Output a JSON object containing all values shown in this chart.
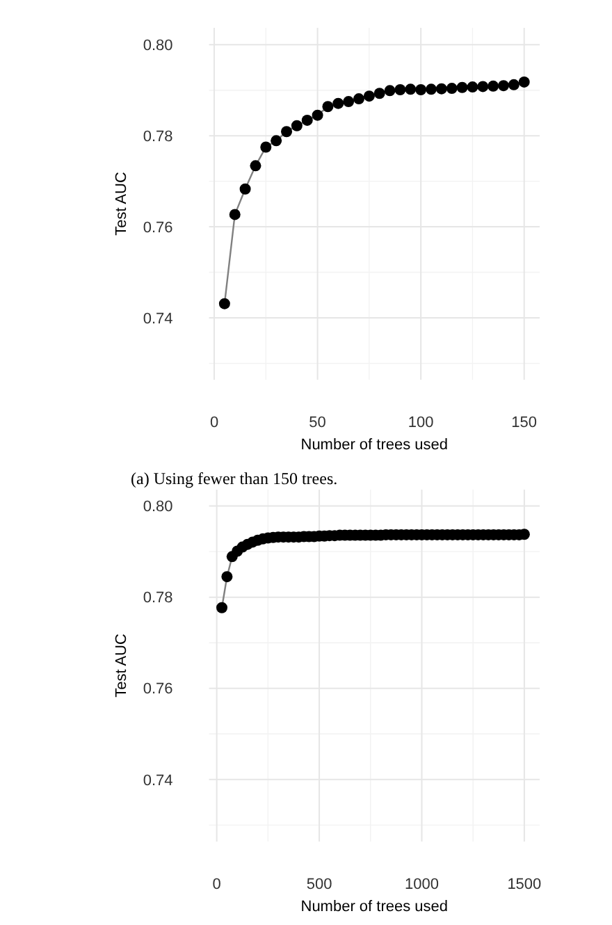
{
  "chart_data": [
    {
      "type": "line",
      "xlabel": "Number of trees used",
      "ylabel": "Test AUC",
      "annotations": [
        "(a) Using fewer than 150 trees."
      ],
      "x": [
        5,
        10,
        15,
        20,
        25,
        30,
        35,
        40,
        45,
        50,
        55,
        60,
        65,
        70,
        75,
        80,
        85,
        90,
        95,
        100,
        105,
        110,
        115,
        120,
        125,
        130,
        135,
        140,
        145,
        150
      ],
      "series": [
        {
          "color": "#000000",
          "values": [
            0.7431,
            0.7627,
            0.7683,
            0.7734,
            0.7775,
            0.7789,
            0.7809,
            0.7822,
            0.7834,
            0.7845,
            0.7864,
            0.7871,
            0.7875,
            0.7881,
            0.7887,
            0.7893,
            0.7899,
            0.7901,
            0.7902,
            0.7901,
            0.7902,
            0.7903,
            0.7904,
            0.7906,
            0.7907,
            0.7908,
            0.7909,
            0.791,
            0.7912,
            0.7918
          ]
        }
      ],
      "xlim": [
        -2.5,
        157.5
      ],
      "xticks": [
        0,
        50,
        100,
        150
      ],
      "ylim": [
        0.7264,
        0.8037
      ],
      "yticks": [
        0.74,
        0.76,
        0.78,
        {
          "value": 0.8,
          "label": "0.80"
        }
      ],
      "grid": true,
      "marker": "circle",
      "line_style": "solid"
    },
    {
      "type": "line",
      "xlabel": "Number of trees used",
      "ylabel": "Test AUC",
      "x": [
        25,
        50,
        75,
        100,
        125,
        150,
        175,
        200,
        225,
        250,
        275,
        300,
        325,
        350,
        375,
        400,
        425,
        450,
        475,
        500,
        525,
        550,
        575,
        600,
        625,
        650,
        675,
        700,
        725,
        750,
        775,
        800,
        825,
        850,
        875,
        900,
        925,
        950,
        975,
        1000,
        1025,
        1050,
        1075,
        1100,
        1125,
        1150,
        1175,
        1200,
        1225,
        1250,
        1275,
        1300,
        1325,
        1350,
        1375,
        1400,
        1425,
        1450,
        1475,
        1500
      ],
      "series": [
        {
          "color": "#000000",
          "values": [
            0.7777,
            0.7845,
            0.7889,
            0.7901,
            0.791,
            0.7916,
            0.7921,
            0.7925,
            0.7928,
            0.793,
            0.7931,
            0.7932,
            0.7932,
            0.7932,
            0.7932,
            0.7932,
            0.7933,
            0.7933,
            0.7933,
            0.7934,
            0.7934,
            0.7935,
            0.7935,
            0.7936,
            0.7936,
            0.7936,
            0.7936,
            0.7936,
            0.7936,
            0.7936,
            0.7936,
            0.7936,
            0.7937,
            0.7937,
            0.7937,
            0.7937,
            0.7937,
            0.7937,
            0.7937,
            0.7937,
            0.7937,
            0.7937,
            0.7937,
            0.7937,
            0.7937,
            0.7937,
            0.7937,
            0.7937,
            0.7937,
            0.7937,
            0.7937,
            0.7937,
            0.7937,
            0.7937,
            0.7937,
            0.7937,
            0.7937,
            0.7937,
            0.7937,
            0.7938
          ]
        }
      ],
      "xlim": [
        -37.5,
        1575
      ],
      "xticks": [
        0,
        500,
        1000,
        1500
      ],
      "ylim": [
        0.7264,
        0.8036
      ],
      "yticks": [
        0.74,
        0.76,
        0.78,
        {
          "value": 0.8,
          "label": "0.80"
        }
      ],
      "grid": true,
      "marker": "circle",
      "line_style": "solid"
    }
  ]
}
